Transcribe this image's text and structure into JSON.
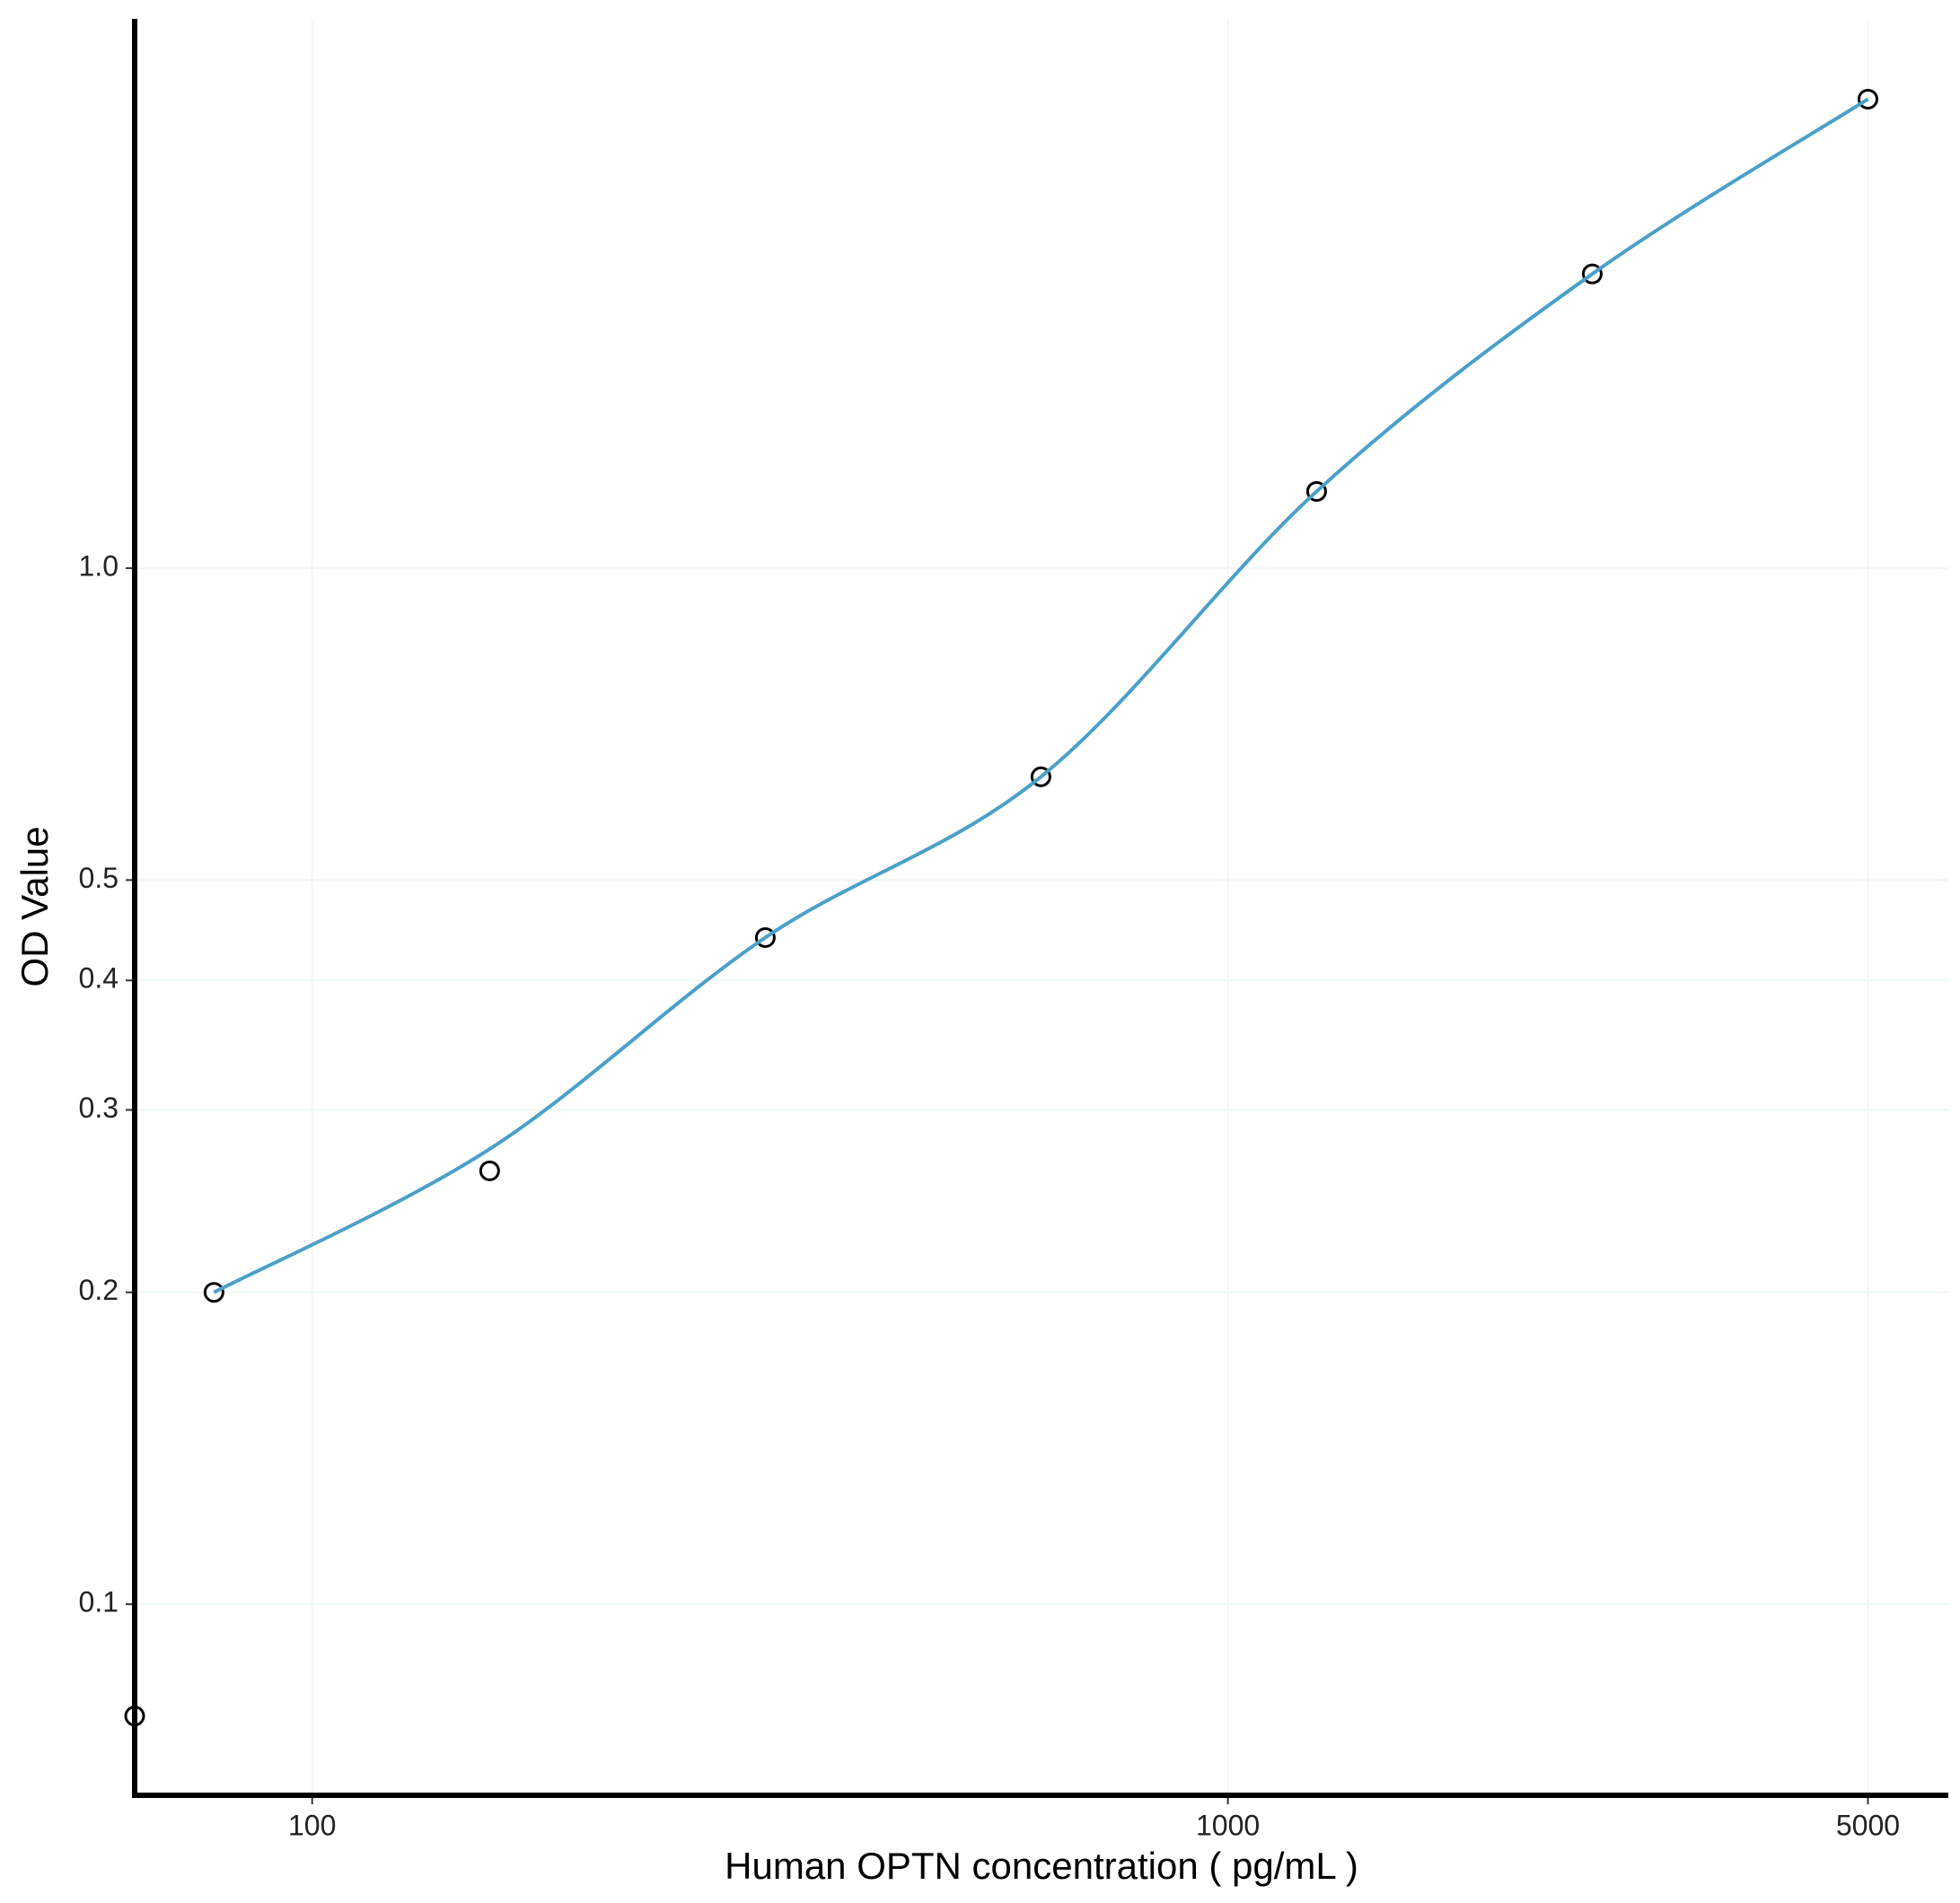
{
  "chart_data": {
    "type": "scatter",
    "x_label": "Human OPTN concentration ( pg/mL )",
    "y_label": "OD Value",
    "log_x": true,
    "log_y": true,
    "grid": true,
    "xlim": [
      64,
      6120
    ],
    "ylim": [
      0.0654,
      3.39
    ],
    "xticks": [
      100,
      1000,
      5000
    ],
    "yticks": [
      0.1,
      0.2,
      0.3,
      0.4,
      0.5,
      {
        "value": 1,
        "label": "1.0"
      }
    ],
    "series": [
      {
        "mode": "points",
        "color": "#000000",
        "x": [
          64,
          78.125,
          156.25,
          312.5,
          625,
          1250,
          2500,
          5000
        ],
        "values": [
          0.078,
          0.2,
          0.262,
          0.44,
          0.629,
          1.186,
          1.923,
          2.836
        ]
      },
      {
        "mode": "curve",
        "color": "#4aa0c8",
        "x": [
          78.125,
          156.25,
          312.5,
          625,
          1250,
          2500,
          5000
        ],
        "values": [
          0.2,
          0.275,
          0.44,
          0.629,
          1.186,
          1.923,
          2.836
        ]
      }
    ]
  }
}
